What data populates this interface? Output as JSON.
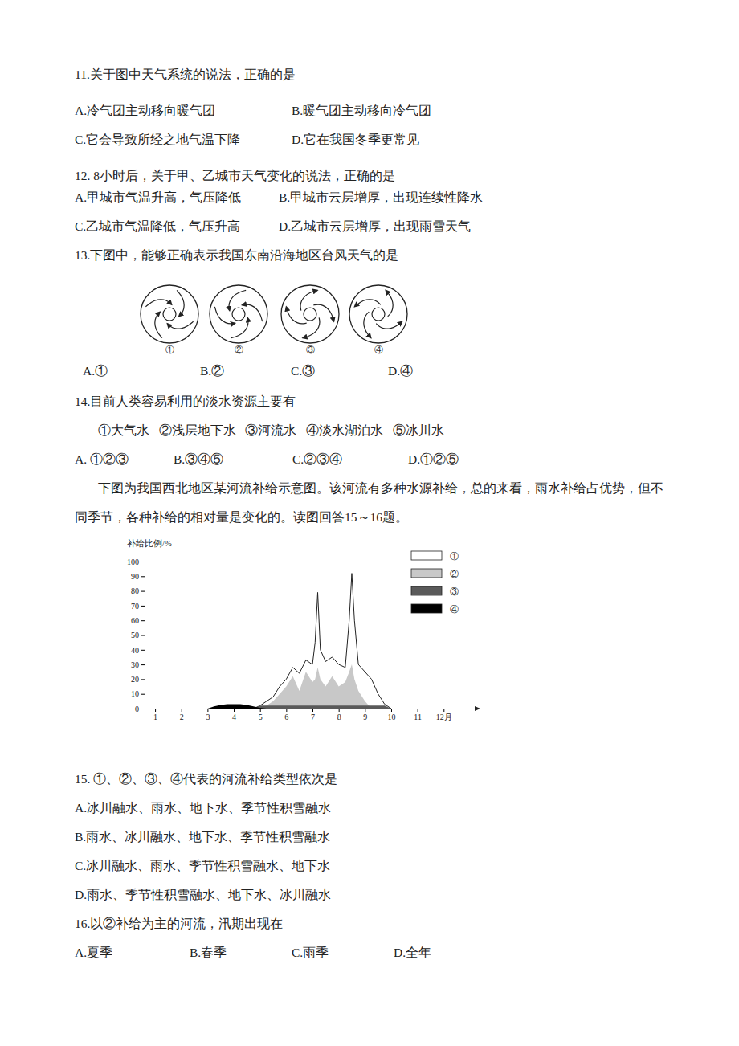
{
  "q11": {
    "stem": "11.关于图中天气系统的说法，正确的是",
    "options": [
      "A.冷气团主动移向暖气团",
      "B.暖气团主动移向冷气团",
      "C.它会导致所经之地气温下降",
      "D.它在我国冬季更常见"
    ]
  },
  "q12": {
    "stem": "12.  8小时后，关于甲、乙城市天气变化的说法，正确的是",
    "options": [
      "A.甲城市气温升高，气压降低",
      "B.甲城市云层增厚，出现连续性降水",
      "C.乙城市气温降低，气压升高",
      "D.乙城市云层增厚，出现雨雪天气"
    ]
  },
  "q13": {
    "stem": "13.下图中，能够正确表示我国东南沿海地区台风天气的是",
    "diagram_labels": [
      "①",
      "②",
      "③",
      "④"
    ],
    "options": [
      "A.①",
      "B.②",
      "C.③",
      "D.④"
    ]
  },
  "q14": {
    "stem": "14.目前人类容易利用的淡水资源主要有",
    "items": "①大气水   ②浅层地下水   ③河流水   ④淡水湖泊水   ⑤冰川水",
    "options": [
      "A. ①②③",
      "B.③④⑤",
      "C.②③④",
      "D.①②⑤"
    ]
  },
  "passage": [
    "下图为我国西北地区某河流补给示意图。该河流有多种水源补给，总的来看，雨水补给占优势，但不",
    "同季节，各种补给的相对量是变化的。读图回答15～16题。"
  ],
  "chart_data": {
    "type": "area",
    "ylabel": "补给比例/%",
    "x": [
      3,
      3.25,
      3.5,
      3.75,
      4,
      4.25,
      4.5,
      4.75,
      5,
      5.25,
      5.5,
      5.75,
      6,
      6.25,
      6.5,
      6.75,
      7,
      7.1,
      7.2,
      7.3,
      7.5,
      7.75,
      8,
      8.25,
      8.4,
      8.5,
      8.6,
      8.75,
      9,
      9.25,
      9.5,
      9.75,
      10
    ],
    "series": [
      {
        "name": "①",
        "color": "#ffffff",
        "values": [
          null,
          null,
          null,
          null,
          null,
          null,
          null,
          0,
          2,
          5,
          8,
          15,
          20,
          28,
          24,
          33,
          30,
          45,
          79,
          40,
          32,
          35,
          30,
          28,
          60,
          92,
          60,
          30,
          25,
          20,
          10,
          3,
          0
        ]
      },
      {
        "name": "②",
        "color": "#c8c8c8",
        "values": [
          null,
          null,
          null,
          null,
          null,
          null,
          null,
          null,
          0,
          2,
          5,
          10,
          15,
          22,
          12,
          25,
          18,
          20,
          28,
          20,
          15,
          22,
          15,
          18,
          25,
          30,
          20,
          12,
          5,
          0,
          null,
          null,
          null
        ]
      },
      {
        "name": "③",
        "color": "#5a5a5a",
        "values": [
          null,
          null,
          null,
          null,
          null,
          null,
          null,
          0,
          2,
          2,
          2,
          2,
          2,
          2,
          2,
          2,
          2,
          2,
          2,
          2,
          2,
          2,
          2,
          2,
          2,
          2,
          2,
          2,
          2,
          2,
          2,
          2,
          0
        ]
      },
      {
        "name": "④",
        "color": "#000000",
        "values": [
          0,
          1.5,
          2.5,
          3,
          3,
          3,
          2.5,
          1.5,
          0.5,
          0,
          null,
          null,
          null,
          null,
          null,
          null,
          null,
          null,
          null,
          null,
          null,
          null,
          null,
          null,
          null,
          null,
          null,
          null,
          null,
          null,
          null,
          null,
          null
        ]
      }
    ],
    "xlim": [
      0.6,
      13.4
    ],
    "xticks": [
      1,
      2,
      3,
      4,
      5,
      6,
      7,
      8,
      9,
      10,
      11,
      {
        "value": 12,
        "label": "12月"
      }
    ],
    "ylim": [
      0,
      100
    ],
    "yticks": [
      0,
      10,
      20,
      30,
      40,
      50,
      60,
      70,
      80,
      90,
      100
    ],
    "legend": "top-right",
    "grid": false
  },
  "q15": {
    "stem": "15. ①、②、③、④代表的河流补给类型依次是",
    "options": [
      "A.冰川融水、雨水、地下水、季节性积雪融水",
      "B.雨水、冰川融水、地下水、季节性积雪融水",
      "C.冰川融水、雨水、季节性积雪融水、地下水",
      "D.雨水、季节性积雪融水、地下水、冰川融水"
    ]
  },
  "q16": {
    "stem": "16.以②补给为主的河流，汛期出现在",
    "options": [
      "A.夏季",
      "B.春季",
      "C.雨季",
      "D.全年"
    ]
  }
}
